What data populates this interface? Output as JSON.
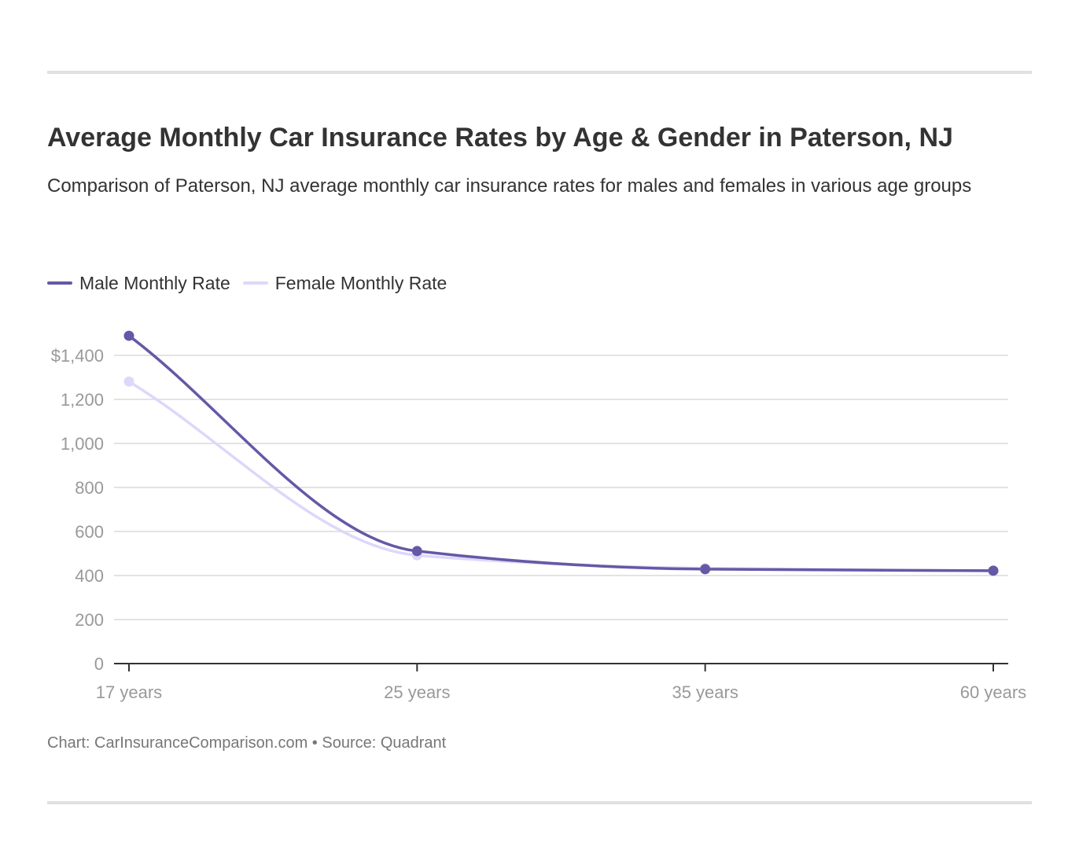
{
  "title": "Average Monthly Car Insurance Rates by Age & Gender in Paterson, NJ",
  "subtitle": "Comparison of Paterson, NJ average monthly car insurance rates for males and females in various age groups",
  "footer": "Chart: CarInsuranceComparison.com • Source: Quadrant",
  "chart_data": {
    "type": "line",
    "title": "Average Monthly Car Insurance Rates by Age & Gender in Paterson, NJ",
    "subtitle": "Comparison of Paterson, NJ average monthly car insurance rates for males and females in various age groups",
    "xlabel": "",
    "ylabel": "",
    "categories": [
      "17 years",
      "25 years",
      "35 years",
      "60 years"
    ],
    "series": [
      {
        "name": "Male Monthly Rate",
        "color": "#6459a6",
        "values": [
          1489,
          511,
          429,
          422
        ]
      },
      {
        "name": "Female Monthly Rate",
        "color": "#ddd8fa",
        "values": [
          1281,
          492,
          433,
          421
        ]
      }
    ],
    "ylim": [
      0,
      1400
    ],
    "yticks": [
      0,
      200,
      400,
      600,
      800,
      1000,
      1200,
      1400
    ],
    "ytick_labels": [
      "0",
      "200",
      "400",
      "600",
      "800",
      "1,000",
      "1,200",
      "$1,400"
    ],
    "grid": true,
    "legend": "top-left",
    "curve": "smooth"
  }
}
